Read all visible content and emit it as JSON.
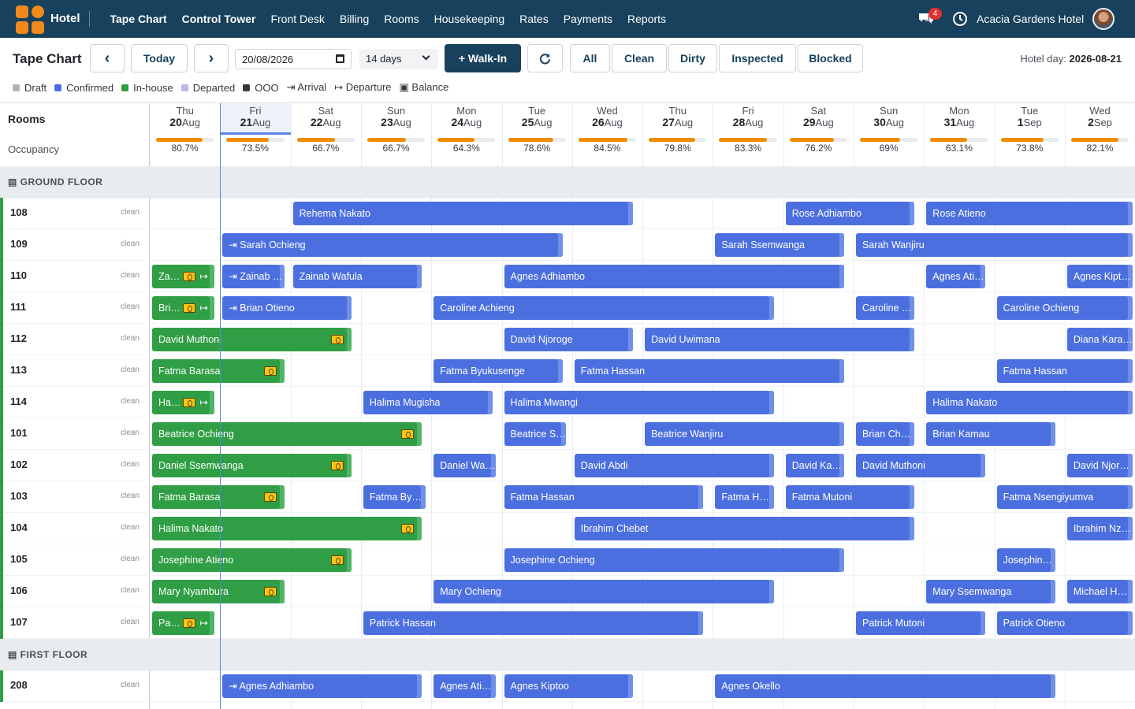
{
  "app": {
    "brand": "Hotel",
    "hotel_name": "Acacia Gardens Hotel",
    "notifications": "4"
  },
  "nav": [
    "Tape Chart",
    "Control Tower",
    "Front Desk",
    "Billing",
    "Rooms",
    "Housekeeping",
    "Rates",
    "Payments",
    "Reports"
  ],
  "toolbar": {
    "title": "Tape Chart",
    "prev": "‹",
    "today": "Today",
    "next": "›",
    "date": "20/08/2026",
    "range": "14 days",
    "walkin": "+ Walk-In",
    "filters": [
      "All",
      "Clean",
      "Dirty",
      "Inspected",
      "Blocked"
    ],
    "hotel_day_label": "Hotel day: ",
    "hotel_day": "2026-08-21"
  },
  "legend": [
    {
      "label": "Draft",
      "color": "#adb5bd"
    },
    {
      "label": "Confirmed",
      "color": "#4c6fe0"
    },
    {
      "label": "In-house",
      "color": "#2f9e44"
    },
    {
      "label": "Departed",
      "color": "#c5b3e6"
    },
    {
      "label": "OOO",
      "color": "#343a40"
    },
    {
      "label": "⇥ Arrival",
      "color": ""
    },
    {
      "label": "↦ Departure",
      "color": ""
    },
    {
      "label": "▣ Balance",
      "color": ""
    }
  ],
  "grid": {
    "rooms_label": "Rooms",
    "occupancy_label": "Occupancy"
  },
  "days": [
    {
      "dow": "Thu",
      "day": "20",
      "mon": "Aug",
      "occ": "80.7%",
      "occ_value": 0.807
    },
    {
      "dow": "Fri",
      "day": "21",
      "mon": "Aug",
      "occ": "73.5%",
      "occ_value": 0.735
    },
    {
      "dow": "Sat",
      "day": "22",
      "mon": "Aug",
      "occ": "66.7%",
      "occ_value": 0.667
    },
    {
      "dow": "Sun",
      "day": "23",
      "mon": "Aug",
      "occ": "66.7%",
      "occ_value": 0.667
    },
    {
      "dow": "Mon",
      "day": "24",
      "mon": "Aug",
      "occ": "64.3%",
      "occ_value": 0.643
    },
    {
      "dow": "Tue",
      "day": "25",
      "mon": "Aug",
      "occ": "78.6%",
      "occ_value": 0.786
    },
    {
      "dow": "Wed",
      "day": "26",
      "mon": "Aug",
      "occ": "84.5%",
      "occ_value": 0.845
    },
    {
      "dow": "Thu",
      "day": "27",
      "mon": "Aug",
      "occ": "79.8%",
      "occ_value": 0.798
    },
    {
      "dow": "Fri",
      "day": "28",
      "mon": "Aug",
      "occ": "83.3%",
      "occ_value": 0.833
    },
    {
      "dow": "Sat",
      "day": "29",
      "mon": "Aug",
      "occ": "76.2%",
      "occ_value": 0.762
    },
    {
      "dow": "Sun",
      "day": "30",
      "mon": "Aug",
      "occ": "69%",
      "occ_value": 0.69
    },
    {
      "dow": "Mon",
      "day": "31",
      "mon": "Aug",
      "occ": "63.1%",
      "occ_value": 0.631
    },
    {
      "dow": "Tue",
      "day": "1",
      "mon": "Sep",
      "occ": "73.8%",
      "occ_value": 0.738
    },
    {
      "dow": "Wed",
      "day": "2",
      "mon": "Sep",
      "occ": "82.1%",
      "occ_value": 0.821
    }
  ],
  "floors": [
    {
      "name": "GROUND FLOOR",
      "rooms": [
        {
          "num": "108",
          "status": "clean",
          "bookings": [
            {
              "guest": "Rehema Nakato",
              "start": 2,
              "end": 6.9,
              "type": "conf"
            },
            {
              "guest": "Rose Adhiambo",
              "start": 9,
              "end": 10.9,
              "type": "conf"
            },
            {
              "guest": "Rose Atieno",
              "start": 11,
              "end": 14,
              "type": "conf"
            }
          ]
        },
        {
          "num": "109",
          "status": "clean",
          "bookings": [
            {
              "guest": "⇥ Sarah Ochieng",
              "start": 1,
              "end": 5.9,
              "type": "conf"
            },
            {
              "guest": "Sarah Ssemwanga",
              "start": 8,
              "end": 9.9,
              "type": "conf"
            },
            {
              "guest": "Sarah Wanjiru",
              "start": 10,
              "end": 14,
              "type": "conf"
            }
          ]
        },
        {
          "num": "110",
          "status": "clean",
          "bookings": [
            {
              "guest": "Zai…",
              "start": 0,
              "end": 0.95,
              "type": "inh",
              "balance": true,
              "depart": true
            },
            {
              "guest": "⇥ Zainab …",
              "start": 1,
              "end": 1.95,
              "type": "conf"
            },
            {
              "guest": "Zainab Wafula",
              "start": 2,
              "end": 3.9,
              "type": "conf"
            },
            {
              "guest": "Agnes Adhiambo",
              "start": 5,
              "end": 9.9,
              "type": "conf"
            },
            {
              "guest": "Agnes Atie…",
              "start": 11,
              "end": 11.9,
              "type": "conf"
            },
            {
              "guest": "Agnes Kipt…",
              "start": 13,
              "end": 14,
              "type": "conf"
            }
          ]
        },
        {
          "num": "111",
          "status": "clean",
          "bookings": [
            {
              "guest": "Bri…",
              "start": 0,
              "end": 0.95,
              "type": "inh",
              "balance": true,
              "depart": true
            },
            {
              "guest": "⇥ Brian Otieno",
              "start": 1,
              "end": 2.9,
              "type": "conf"
            },
            {
              "guest": "Caroline Achieng",
              "start": 4,
              "end": 8.9,
              "type": "conf"
            },
            {
              "guest": "Caroline N…",
              "start": 10,
              "end": 10.9,
              "type": "conf"
            },
            {
              "guest": "Caroline Ochieng",
              "start": 12,
              "end": 14,
              "type": "conf"
            }
          ]
        },
        {
          "num": "112",
          "status": "clean",
          "bookings": [
            {
              "guest": "David Muthoni",
              "start": 0,
              "end": 2.9,
              "type": "inh",
              "balance": true
            },
            {
              "guest": "David Njoroge",
              "start": 5,
              "end": 6.9,
              "type": "conf"
            },
            {
              "guest": "David Uwimana",
              "start": 7,
              "end": 10.9,
              "type": "conf"
            },
            {
              "guest": "Diana Kara…",
              "start": 13,
              "end": 14,
              "type": "conf"
            }
          ]
        },
        {
          "num": "113",
          "status": "clean",
          "bookings": [
            {
              "guest": "Fatma Barasa",
              "start": 0,
              "end": 1.95,
              "type": "inh",
              "balance": true
            },
            {
              "guest": "Fatma Byukusenge",
              "start": 4,
              "end": 5.9,
              "type": "conf"
            },
            {
              "guest": "Fatma Hassan",
              "start": 6,
              "end": 9.9,
              "type": "conf"
            },
            {
              "guest": "Fatma Hassan",
              "start": 12,
              "end": 14,
              "type": "conf"
            }
          ]
        },
        {
          "num": "114",
          "status": "clean",
          "bookings": [
            {
              "guest": "Hal…",
              "start": 0,
              "end": 0.95,
              "type": "inh",
              "balance": true,
              "depart": true
            },
            {
              "guest": "Halima Mugisha",
              "start": 3,
              "end": 4.9,
              "type": "conf"
            },
            {
              "guest": "Halima Mwangi",
              "start": 5,
              "end": 8.9,
              "type": "conf"
            },
            {
              "guest": "Halima Nakato",
              "start": 11,
              "end": 14,
              "type": "conf"
            }
          ]
        },
        {
          "num": "101",
          "status": "clean",
          "bookings": [
            {
              "guest": "Beatrice Ochieng",
              "start": 0,
              "end": 3.9,
              "type": "inh",
              "balance": true
            },
            {
              "guest": "Beatrice S…",
              "start": 5,
              "end": 5.95,
              "type": "conf"
            },
            {
              "guest": "Beatrice Wanjiru",
              "start": 7,
              "end": 9.9,
              "type": "conf"
            },
            {
              "guest": "Brian Cheb…",
              "start": 10,
              "end": 10.9,
              "type": "conf"
            },
            {
              "guest": "Brian Kamau",
              "start": 11,
              "end": 12.9,
              "type": "conf"
            }
          ]
        },
        {
          "num": "102",
          "status": "clean",
          "bookings": [
            {
              "guest": "Daniel Ssemwanga",
              "start": 0,
              "end": 2.9,
              "type": "inh",
              "balance": true
            },
            {
              "guest": "Daniel Wa…",
              "start": 4,
              "end": 4.95,
              "type": "conf"
            },
            {
              "guest": "David Abdi",
              "start": 6,
              "end": 8.9,
              "type": "conf"
            },
            {
              "guest": "David Kam…",
              "start": 9,
              "end": 9.9,
              "type": "conf"
            },
            {
              "guest": "David Muthoni",
              "start": 10,
              "end": 11.9,
              "type": "conf"
            },
            {
              "guest": "David Njor…",
              "start": 13,
              "end": 14,
              "type": "conf"
            }
          ]
        },
        {
          "num": "103",
          "status": "clean",
          "bookings": [
            {
              "guest": "Fatma Barasa",
              "start": 0,
              "end": 1.95,
              "type": "inh",
              "balance": true
            },
            {
              "guest": "Fatma Byu…",
              "start": 3,
              "end": 3.95,
              "type": "conf"
            },
            {
              "guest": "Fatma Hassan",
              "start": 5,
              "end": 7.9,
              "type": "conf"
            },
            {
              "guest": "Fatma Has…",
              "start": 8,
              "end": 8.9,
              "type": "conf"
            },
            {
              "guest": "Fatma Mutoni",
              "start": 9,
              "end": 10.9,
              "type": "conf"
            },
            {
              "guest": "Fatma Nsengiyumva",
              "start": 12,
              "end": 14,
              "type": "conf"
            }
          ]
        },
        {
          "num": "104",
          "status": "clean",
          "bookings": [
            {
              "guest": "Halima Nakato",
              "start": 0,
              "end": 3.9,
              "type": "inh",
              "balance": true
            },
            {
              "guest": "Ibrahim Chebet",
              "start": 6,
              "end": 10.9,
              "type": "conf"
            },
            {
              "guest": "Ibrahim Nz…",
              "start": 13,
              "end": 14,
              "type": "conf"
            }
          ]
        },
        {
          "num": "105",
          "status": "clean",
          "bookings": [
            {
              "guest": "Josephine Atieno",
              "start": 0,
              "end": 2.9,
              "type": "inh",
              "balance": true
            },
            {
              "guest": "Josephine Ochieng",
              "start": 5,
              "end": 9.9,
              "type": "conf"
            },
            {
              "guest": "Josephine …",
              "start": 12,
              "end": 12.9,
              "type": "conf"
            }
          ]
        },
        {
          "num": "106",
          "status": "clean",
          "bookings": [
            {
              "guest": "Mary Nyambura",
              "start": 0,
              "end": 1.95,
              "type": "inh",
              "balance": true
            },
            {
              "guest": "Mary Ochieng",
              "start": 4,
              "end": 8.9,
              "type": "conf"
            },
            {
              "guest": "Mary Ssemwanga",
              "start": 11,
              "end": 12.9,
              "type": "conf"
            },
            {
              "guest": "Michael H…",
              "start": 13,
              "end": 14,
              "type": "conf"
            }
          ]
        },
        {
          "num": "107",
          "status": "clean",
          "bookings": [
            {
              "guest": "Pat…",
              "start": 0,
              "end": 0.95,
              "type": "inh",
              "balance": true,
              "depart": true
            },
            {
              "guest": "Patrick Hassan",
              "start": 3,
              "end": 7.9,
              "type": "conf"
            },
            {
              "guest": "Patrick Mutoni",
              "start": 10,
              "end": 11.9,
              "type": "conf"
            },
            {
              "guest": "Patrick Otieno",
              "start": 12,
              "end": 14,
              "type": "conf"
            }
          ]
        }
      ]
    },
    {
      "name": "FIRST FLOOR",
      "rooms": [
        {
          "num": "208",
          "status": "clean",
          "bookings": [
            {
              "guest": "⇥ Agnes Adhiambo",
              "start": 1,
              "end": 3.9,
              "type": "conf"
            },
            {
              "guest": "Agnes Atie…",
              "start": 4,
              "end": 4.95,
              "type": "conf"
            },
            {
              "guest": "Agnes Kiptoo",
              "start": 5,
              "end": 6.9,
              "type": "conf"
            },
            {
              "guest": "Agnes Okello",
              "start": 8,
              "end": 12.9,
              "type": "conf"
            }
          ]
        }
      ]
    }
  ]
}
